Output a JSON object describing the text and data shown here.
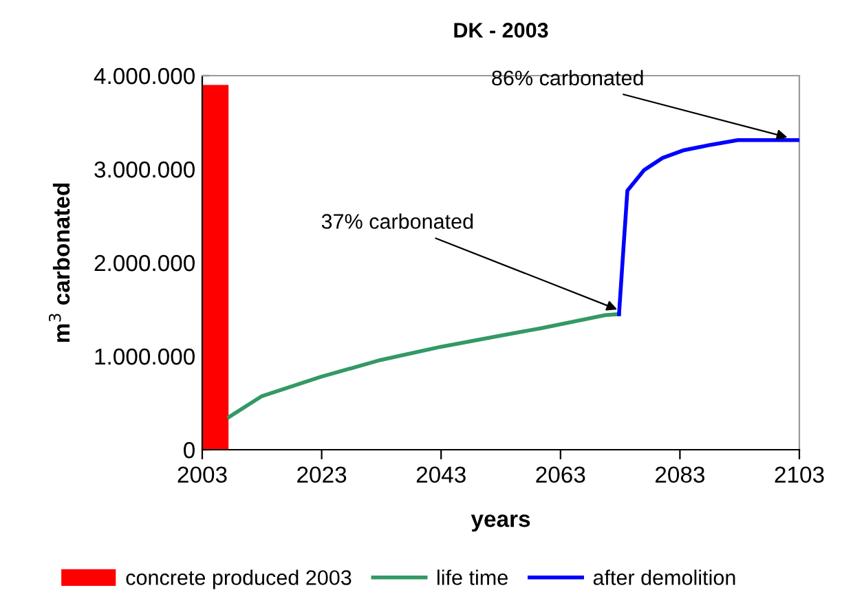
{
  "chart_data": {
    "type": "line",
    "title": "DK - 2003",
    "xlabel": "years",
    "ylabel": "m$^{3}$ carbonated",
    "xlim": [
      2003,
      2103
    ],
    "xticks": [
      2003,
      2023,
      2043,
      2063,
      2083,
      2103
    ],
    "ylim": [
      0,
      4000000
    ],
    "yticks": [
      {
        "value": 0,
        "label": "0"
      },
      {
        "value": 1000000,
        "label": "1.000.000"
      },
      {
        "value": 2000000,
        "label": "2.000.000"
      },
      {
        "value": 3000000,
        "label": "3.000.000"
      },
      {
        "value": 4000000,
        "label": "4.000.000"
      }
    ],
    "grid": false,
    "legend": "bottom",
    "marker": "none",
    "line_style": "solid",
    "series": [
      {
        "name": "concrete produced 2003",
        "type": "bar",
        "color": "#ff0000",
        "x": [
          2005.2
        ],
        "values": [
          3900000
        ]
      },
      {
        "name": "life time",
        "color": "#339966",
        "x": [
          2007.5,
          2012.9,
          2022.9,
          2032.9,
          2042.9,
          2052.1,
          2059.8,
          2070.5,
          2072.8
        ],
        "values": [
          350000,
          570000,
          780000,
          960000,
          1100000,
          1210000,
          1300000,
          1440000,
          1450000
        ]
      },
      {
        "name": "after demolition",
        "color": "#0000ff",
        "x": [
          2072.8,
          2073.6,
          2074.2,
          2077.0,
          2080.1,
          2083.5,
          2088.1,
          2092.7,
          2103
        ],
        "values": [
          1450000,
          2210000,
          2770000,
          2990000,
          3120000,
          3200000,
          3260000,
          3310000,
          3310000
        ]
      }
    ],
    "annotations": [
      {
        "text": "37% carbonated",
        "x": 2072.5,
        "y": 1500000
      },
      {
        "text": "86% carbonated",
        "x": 2101,
        "y": 3340000
      }
    ]
  }
}
